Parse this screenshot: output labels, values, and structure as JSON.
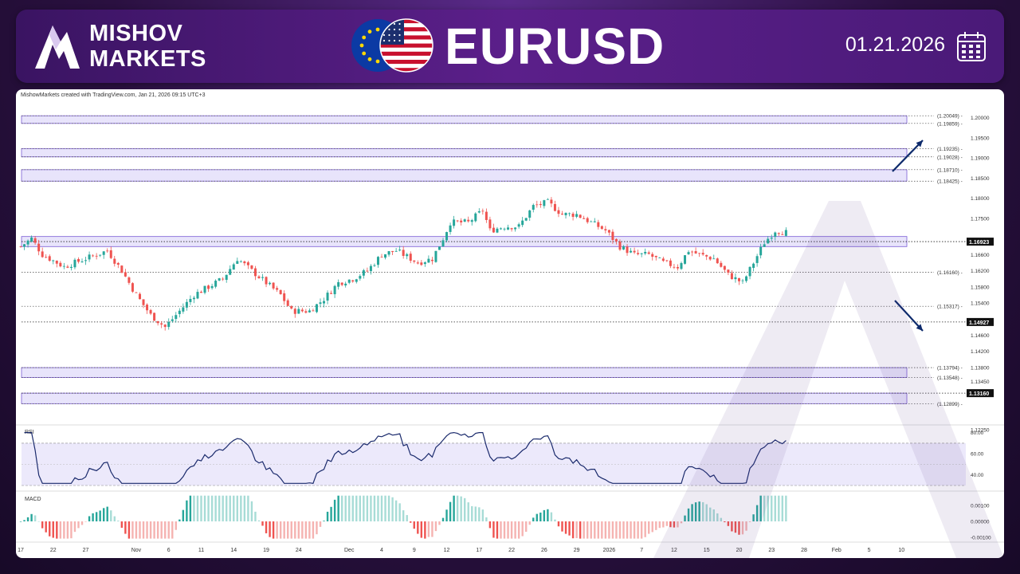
{
  "header": {
    "brand_line1": "MISHOV",
    "brand_line2": "MARKETS",
    "pair": "EURUSD",
    "date": "01.21.2026"
  },
  "chart_meta": {
    "credit": "MishowMarkets created with TradingView.com, Jan 21, 2026 09:15 UTC+3",
    "rsi_label": "RSI",
    "macd_label": "MACD"
  },
  "colors": {
    "header_bg": "#4a1a78",
    "zone_fill": "#e8e4fb",
    "zone_stroke": "#7a5cd6",
    "bull": "#26a69a",
    "bear": "#ef5350",
    "rsi_line": "#1a2a6c",
    "arrow": "#0d2a6b"
  },
  "icons": [
    "mishov-logo-icon",
    "eu-flag-icon",
    "us-flag-icon",
    "calendar-icon"
  ],
  "chart_data": {
    "type": "candlestick",
    "title": "EURUSD",
    "ylim": [
      1.1245,
      1.2035
    ],
    "price_ticks": [
      "1.20000",
      "1.19500",
      "1.19000",
      "1.18500",
      "1.18000",
      "1.17500",
      "1.16600",
      "1.16200",
      "1.15800",
      "1.15400",
      "1.14600",
      "1.14200",
      "1.13800",
      "1.13450",
      "1.12250"
    ],
    "level_labels": [
      {
        "text": "(1.20049)",
        "value": 1.20049
      },
      {
        "text": "(1.19859)",
        "value": 1.19859
      },
      {
        "text": "(1.19235)",
        "value": 1.19235
      },
      {
        "text": "(1.19028)",
        "value": 1.19028
      },
      {
        "text": "(1.18710)",
        "value": 1.1871
      },
      {
        "text": "(1.18425)",
        "value": 1.18425
      },
      {
        "text": "(1.16160)",
        "value": 1.1616
      },
      {
        "text": "(1.15317)",
        "value": 1.15317
      },
      {
        "text": "(1.13794)",
        "value": 1.13794
      },
      {
        "text": "(1.13548)",
        "value": 1.13548
      },
      {
        "text": "(1.12899)",
        "value": 1.12899
      }
    ],
    "highlighted_levels": [
      {
        "text": "1.16923",
        "value": 1.16923
      },
      {
        "text": "1.14927",
        "value": 1.14927
      },
      {
        "text": "1.13160",
        "value": 1.1316
      }
    ],
    "zones": [
      [
        1.19859,
        1.20049
      ],
      [
        1.19028,
        1.19235
      ],
      [
        1.18425,
        1.1871
      ],
      [
        1.168,
        1.1705
      ],
      [
        1.13548,
        1.13794
      ],
      [
        1.12899,
        1.1316
      ]
    ],
    "x_labels": [
      {
        "text": "17",
        "bar": 0
      },
      {
        "text": "22",
        "bar": 9
      },
      {
        "text": "27",
        "bar": 18
      },
      {
        "text": "Nov",
        "bar": 32
      },
      {
        "text": "6",
        "bar": 41
      },
      {
        "text": "11",
        "bar": 50
      },
      {
        "text": "14",
        "bar": 59
      },
      {
        "text": "19",
        "bar": 68
      },
      {
        "text": "24",
        "bar": 77
      },
      {
        "text": "Dec",
        "bar": 91
      },
      {
        "text": "4",
        "bar": 100
      },
      {
        "text": "9",
        "bar": 109
      },
      {
        "text": "12",
        "bar": 118
      },
      {
        "text": "17",
        "bar": 127
      },
      {
        "text": "22",
        "bar": 136
      },
      {
        "text": "26",
        "bar": 145
      },
      {
        "text": "29",
        "bar": 154
      },
      {
        "text": "2026",
        "bar": 163
      },
      {
        "text": "7",
        "bar": 172
      },
      {
        "text": "12",
        "bar": 181
      },
      {
        "text": "15",
        "bar": 190
      },
      {
        "text": "20",
        "bar": 199
      },
      {
        "text": "23",
        "bar": 208
      },
      {
        "text": "28",
        "bar": 217
      },
      {
        "text": "Feb",
        "bar": 226
      },
      {
        "text": "5",
        "bar": 235
      },
      {
        "text": "10",
        "bar": 244
      }
    ],
    "price_path": [
      [
        0,
        1.168
      ],
      [
        3,
        1.17
      ],
      [
        6,
        1.166
      ],
      [
        12,
        1.163
      ],
      [
        18,
        1.165
      ],
      [
        24,
        1.167
      ],
      [
        28,
        1.162
      ],
      [
        32,
        1.156
      ],
      [
        36,
        1.151
      ],
      [
        40,
        1.148
      ],
      [
        44,
        1.152
      ],
      [
        48,
        1.156
      ],
      [
        52,
        1.158
      ],
      [
        56,
        1.16
      ],
      [
        60,
        1.165
      ],
      [
        64,
        1.162
      ],
      [
        68,
        1.159
      ],
      [
        72,
        1.156
      ],
      [
        75,
        1.152
      ],
      [
        80,
        1.152
      ],
      [
        84,
        1.155
      ],
      [
        88,
        1.159
      ],
      [
        92,
        1.16
      ],
      [
        96,
        1.162
      ],
      [
        100,
        1.166
      ],
      [
        104,
        1.167
      ],
      [
        110,
        1.164
      ],
      [
        114,
        1.165
      ],
      [
        117,
        1.17
      ],
      [
        119,
        1.174
      ],
      [
        124,
        1.174
      ],
      [
        128,
        1.177
      ],
      [
        130,
        1.172
      ],
      [
        134,
        1.173
      ],
      [
        138,
        1.173
      ],
      [
        142,
        1.178
      ],
      [
        146,
        1.179
      ],
      [
        150,
        1.176
      ],
      [
        154,
        1.176
      ],
      [
        158,
        1.174
      ],
      [
        162,
        1.172
      ],
      [
        166,
        1.168
      ],
      [
        170,
        1.166
      ],
      [
        174,
        1.166
      ],
      [
        178,
        1.164
      ],
      [
        182,
        1.163
      ],
      [
        185,
        1.167
      ],
      [
        188,
        1.166
      ],
      [
        192,
        1.165
      ],
      [
        196,
        1.161
      ],
      [
        200,
        1.159
      ],
      [
        203,
        1.164
      ],
      [
        206,
        1.169
      ],
      [
        209,
        1.172
      ],
      [
        212,
        1.1715
      ]
    ],
    "rsi": {
      "ylim": [
        30,
        85
      ],
      "ticks": [
        "80.00",
        "60.00",
        "40.00"
      ],
      "bands": [
        70,
        30
      ]
    },
    "macd": {
      "ylim": [
        -0.0012,
        0.0017
      ],
      "ticks": [
        "0.00100",
        "0.00000",
        "-0.00100"
      ]
    }
  }
}
